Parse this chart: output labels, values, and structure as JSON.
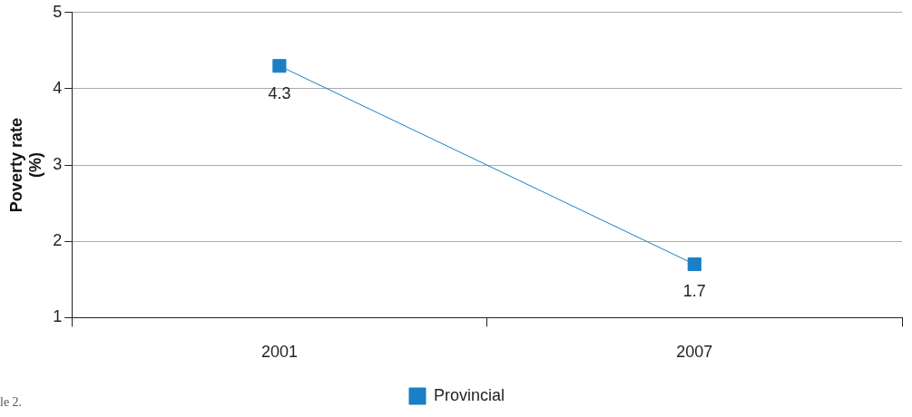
{
  "chart_data": {
    "type": "line",
    "ylabel": "Poverty rate\n(%)",
    "categories": [
      "2001",
      "2007"
    ],
    "series": [
      {
        "name": "Provincial",
        "color": "#1a7fc4",
        "values": [
          4.3,
          1.7
        ]
      }
    ],
    "ylim": [
      1,
      5
    ],
    "yticks": [
      1,
      2,
      3,
      4,
      5
    ],
    "grid": "y",
    "legend": "bottom",
    "marker": "square",
    "line_style": "solid",
    "data_labels": true,
    "annotations": [
      "le 2."
    ]
  }
}
